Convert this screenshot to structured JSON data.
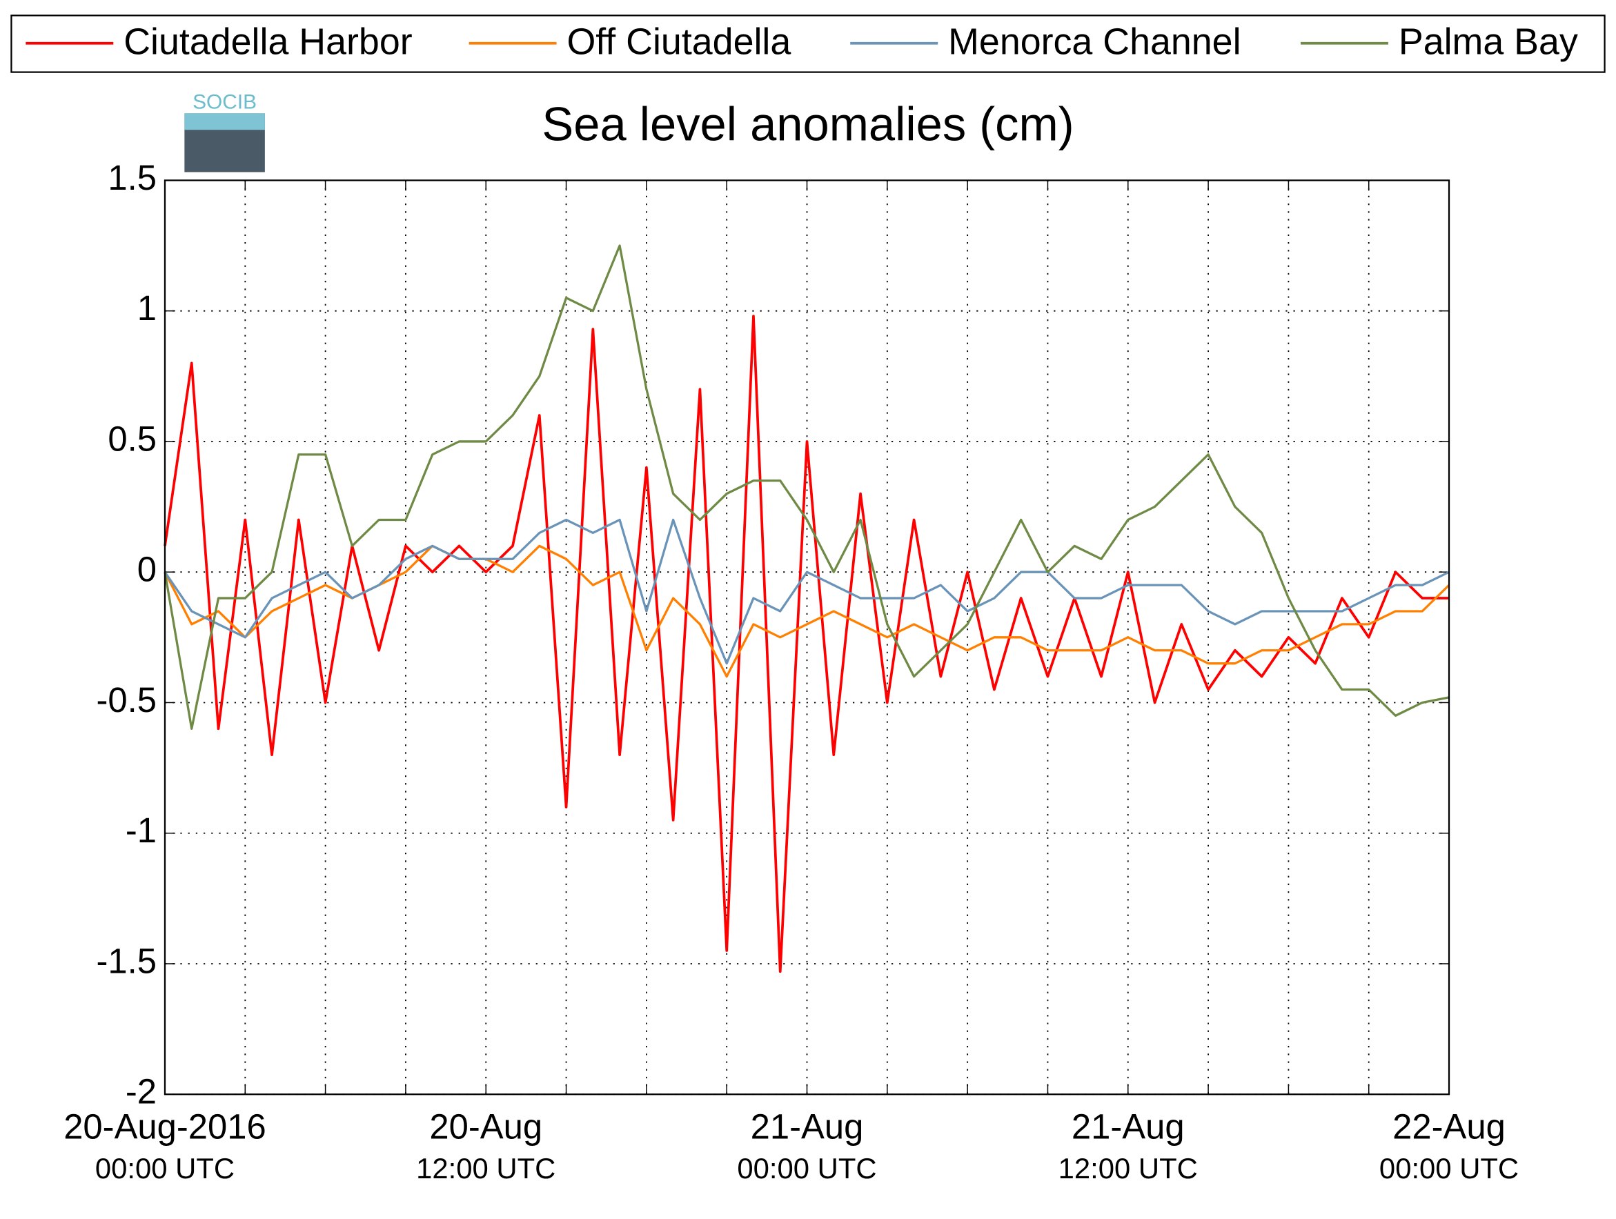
{
  "chart_data": {
    "type": "line",
    "title": "Sea level anomalies (cm)",
    "logo_text": "SOCIB",
    "x": [
      0,
      1,
      2,
      3,
      4,
      5,
      6,
      7,
      8,
      9,
      10,
      11,
      12,
      13,
      14,
      15,
      16,
      17,
      18,
      19,
      20,
      21,
      22,
      23,
      24,
      25,
      26,
      27,
      28,
      29,
      30,
      31,
      32,
      33,
      34,
      35,
      36,
      37,
      38,
      39,
      40,
      41,
      42,
      43,
      44,
      45,
      46,
      47,
      48
    ],
    "xlim": [
      0,
      48
    ],
    "xticks": [
      {
        "value": 0,
        "label": "20-Aug-2016",
        "sublabel": "00:00 UTC"
      },
      {
        "value": 12,
        "label": "20-Aug",
        "sublabel": "12:00 UTC"
      },
      {
        "value": 24,
        "label": "21-Aug",
        "sublabel": "00:00 UTC"
      },
      {
        "value": 36,
        "label": "21-Aug",
        "sublabel": "12:00 UTC"
      },
      {
        "value": 48,
        "label": "22-Aug",
        "sublabel": "00:00 UTC"
      }
    ],
    "xminor": [
      3,
      6,
      9,
      15,
      18,
      21,
      27,
      30,
      33,
      39,
      42,
      45
    ],
    "ylim": [
      -2,
      1.5
    ],
    "yticks": [
      -2,
      -1.5,
      -1,
      -0.5,
      0,
      0.5,
      1,
      1.5
    ],
    "grid": true,
    "legend": "top",
    "series": [
      {
        "name": "Ciutadella Harbor",
        "color": "#ff0000",
        "values": [
          0.1,
          0.8,
          -0.6,
          0.2,
          -0.7,
          0.2,
          -0.5,
          0.1,
          -0.3,
          0.1,
          0.0,
          0.1,
          0.0,
          0.1,
          0.6,
          -0.9,
          0.93,
          -0.7,
          0.4,
          -0.95,
          0.7,
          -1.45,
          0.98,
          -1.53,
          0.5,
          -0.7,
          0.3,
          -0.5,
          0.2,
          -0.4,
          0.0,
          -0.45,
          -0.1,
          -0.4,
          -0.1,
          -0.4,
          0.0,
          -0.5,
          -0.2,
          -0.45,
          -0.3,
          -0.4,
          -0.25,
          -0.35,
          -0.1,
          -0.25,
          0.0,
          -0.1,
          -0.1
        ]
      },
      {
        "name": "Off Ciutadella",
        "color": "#ff8000",
        "values": [
          0.0,
          -0.2,
          -0.15,
          -0.25,
          -0.15,
          -0.1,
          -0.05,
          -0.1,
          -0.05,
          0.0,
          0.1,
          0.05,
          0.05,
          0.0,
          0.1,
          0.05,
          -0.05,
          0.0,
          -0.3,
          -0.1,
          -0.2,
          -0.4,
          -0.2,
          -0.25,
          -0.2,
          -0.15,
          -0.2,
          -0.25,
          -0.2,
          -0.25,
          -0.3,
          -0.25,
          -0.25,
          -0.3,
          -0.3,
          -0.3,
          -0.25,
          -0.3,
          -0.3,
          -0.35,
          -0.35,
          -0.3,
          -0.3,
          -0.25,
          -0.2,
          -0.2,
          -0.15,
          -0.15,
          -0.05
        ]
      },
      {
        "name": "Menorca Channel",
        "color": "#6a93b8",
        "values": [
          0.0,
          -0.15,
          -0.2,
          -0.25,
          -0.1,
          -0.05,
          0.0,
          -0.1,
          -0.05,
          0.05,
          0.1,
          0.05,
          0.05,
          0.05,
          0.15,
          0.2,
          0.15,
          0.2,
          -0.15,
          0.2,
          -0.1,
          -0.35,
          -0.1,
          -0.15,
          0.0,
          -0.05,
          -0.1,
          -0.1,
          -0.1,
          -0.05,
          -0.15,
          -0.1,
          0.0,
          0.0,
          -0.1,
          -0.1,
          -0.05,
          -0.05,
          -0.05,
          -0.15,
          -0.2,
          -0.15,
          -0.15,
          -0.15,
          -0.15,
          -0.1,
          -0.05,
          -0.05,
          0.0
        ]
      },
      {
        "name": "Palma Bay",
        "color": "#6f8a45",
        "values": [
          0.0,
          -0.6,
          -0.1,
          -0.1,
          0.0,
          0.45,
          0.45,
          0.1,
          0.2,
          0.2,
          0.45,
          0.5,
          0.5,
          0.6,
          0.75,
          1.05,
          1.0,
          1.25,
          0.7,
          0.3,
          0.2,
          0.3,
          0.35,
          0.35,
          0.2,
          0.0,
          0.2,
          -0.2,
          -0.4,
          -0.3,
          -0.2,
          0.0,
          0.2,
          0.0,
          0.1,
          0.05,
          0.2,
          0.25,
          0.35,
          0.45,
          0.25,
          0.15,
          -0.1,
          -0.3,
          -0.45,
          -0.45,
          -0.55,
          -0.5,
          -0.48
        ]
      }
    ]
  }
}
